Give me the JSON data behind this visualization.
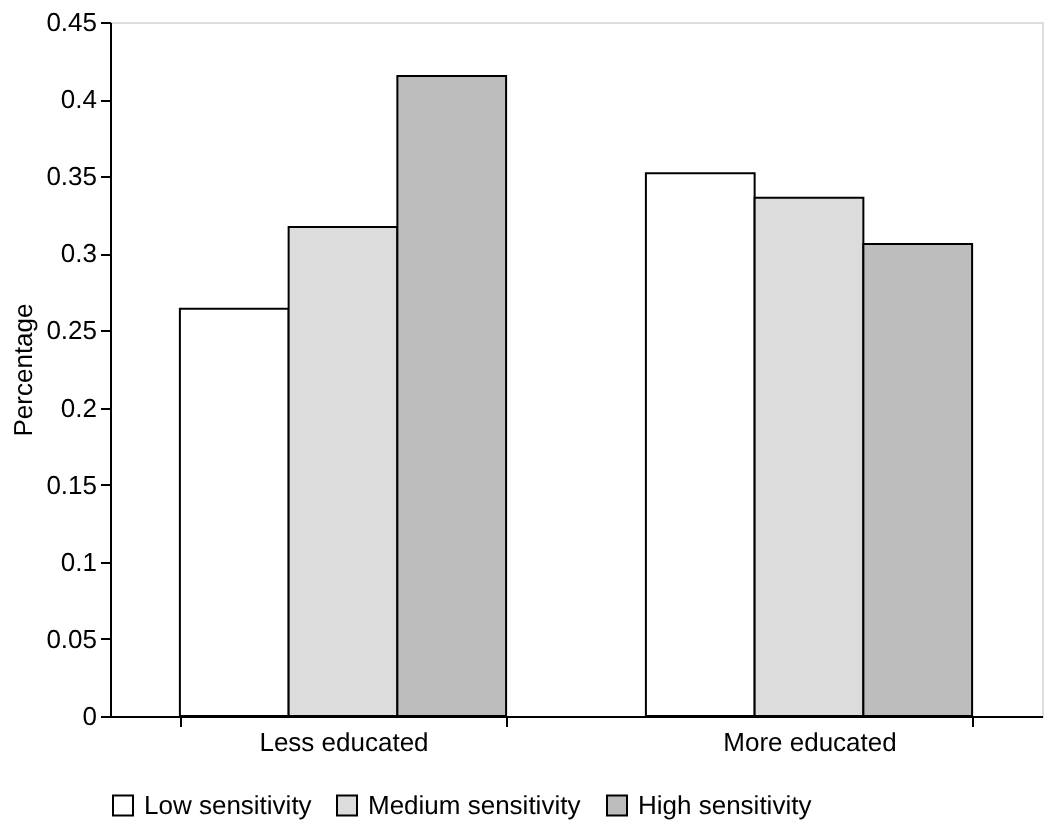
{
  "chart_data": {
    "type": "bar",
    "ylabel": "Percentage",
    "categories": [
      "Less educated",
      "More educated"
    ],
    "series": [
      {
        "name": "Low sensitivity",
        "color": "#ffffff",
        "values": [
          0.264,
          0.352
        ]
      },
      {
        "name": "Medium sensitivity",
        "color": "#dcdcdc",
        "values": [
          0.317,
          0.336
        ]
      },
      {
        "name": "High sensitivity",
        "color": "#bdbdbd",
        "values": [
          0.415,
          0.306
        ]
      }
    ],
    "ylim": [
      0,
      0.45
    ],
    "yticks": [
      0,
      0.05,
      0.1,
      0.15,
      0.2,
      0.25,
      0.3,
      0.35,
      0.4,
      0.45
    ],
    "grid": false,
    "legend": "bottom"
  }
}
